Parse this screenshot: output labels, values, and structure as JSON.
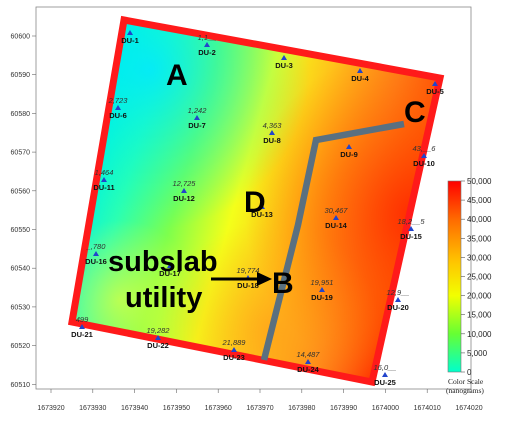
{
  "axes": {
    "x_ticks": [
      "1673920",
      "1673930",
      "1673940",
      "1673950",
      "1673960",
      "1673970",
      "1673980",
      "1673990",
      "1674000",
      "1674010",
      "1674020"
    ],
    "y_ticks": [
      "60600",
      "60590",
      "60580",
      "60570",
      "60560",
      "60550",
      "60540",
      "60530",
      "60520",
      "60510"
    ]
  },
  "zones": [
    "A",
    "C",
    "D",
    "B"
  ],
  "annotation": {
    "line1": "subslab",
    "line2": "utility"
  },
  "colorbar": {
    "ticks": [
      "50,000",
      "45,000",
      "40,000",
      "35,000",
      "30,000",
      "25,000",
      "20,000",
      "15,000",
      "10,000",
      "5,000",
      "0"
    ],
    "title_line1": "Color Scale",
    "title_line2": "(nanograms)"
  },
  "colors": {
    "boundary": "#ff1a1a",
    "utility_line": "#5a7080",
    "marker": "#2244cc",
    "scale": [
      "#ff0000",
      "#ff6a00",
      "#ffc400",
      "#f2ff00",
      "#66ff33",
      "#00ffcc"
    ]
  },
  "points": [
    {
      "id": "DU-1",
      "value": ""
    },
    {
      "id": "DU-2",
      "value": "1,1__"
    },
    {
      "id": "DU-3",
      "value": ""
    },
    {
      "id": "DU-4",
      "value": ""
    },
    {
      "id": "DU-5",
      "value": ""
    },
    {
      "id": "DU-6",
      "value": "2,723"
    },
    {
      "id": "DU-7",
      "value": "1,242"
    },
    {
      "id": "DU-8",
      "value": "4,363"
    },
    {
      "id": "DU-9",
      "value": ""
    },
    {
      "id": "DU-10",
      "value": "43,__6"
    },
    {
      "id": "DU-11",
      "value": "1,464"
    },
    {
      "id": "DU-12",
      "value": "12,725"
    },
    {
      "id": "DU-13",
      "value": ""
    },
    {
      "id": "DU-14",
      "value": "30,467"
    },
    {
      "id": "DU-15",
      "value": "18,2__5"
    },
    {
      "id": "DU-16",
      "value": "_,780"
    },
    {
      "id": "DU-17",
      "value": ""
    },
    {
      "id": "DU-18",
      "value": "19,774"
    },
    {
      "id": "DU-19",
      "value": "19,951"
    },
    {
      "id": "DU-20",
      "value": "12,9__"
    },
    {
      "id": "DU-21",
      "value": "499"
    },
    {
      "id": "DU-22",
      "value": "19,282"
    },
    {
      "id": "DU-23",
      "value": "21,889"
    },
    {
      "id": "DU-24",
      "value": "14,487"
    },
    {
      "id": "DU-25",
      "value": "16,0__"
    }
  ]
}
